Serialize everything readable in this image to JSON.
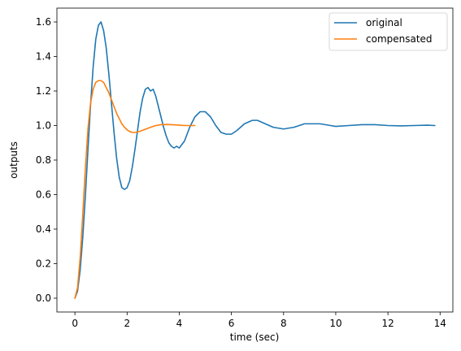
{
  "chart_data": {
    "type": "line",
    "title": "",
    "xlabel": "time (sec)",
    "ylabel": "outputs",
    "xlim": [
      -0.69,
      14.49
    ],
    "ylim": [
      -0.08,
      1.68
    ],
    "xticks": [
      0,
      2,
      4,
      6,
      8,
      10,
      12,
      14
    ],
    "xtick_labels": [
      "0",
      "2",
      "4",
      "6",
      "8",
      "10",
      "12",
      "14"
    ],
    "yticks": [
      0.0,
      0.2,
      0.4,
      0.6,
      0.8,
      1.0,
      1.2,
      1.4,
      1.6
    ],
    "ytick_labels": [
      "0.0",
      "0.2",
      "0.4",
      "0.6",
      "0.8",
      "1.0",
      "1.2",
      "1.4",
      "1.6"
    ],
    "grid": false,
    "legend_position": "top-right",
    "series": [
      {
        "name": "original",
        "color": "#1f77b4",
        "x": [
          0.0,
          0.1,
          0.2,
          0.3,
          0.4,
          0.5,
          0.6,
          0.7,
          0.8,
          0.9,
          1.0,
          1.1,
          1.2,
          1.3,
          1.4,
          1.5,
          1.6,
          1.7,
          1.8,
          1.9,
          2.0,
          2.1,
          2.2,
          2.3,
          2.4,
          2.5,
          2.6,
          2.7,
          2.8,
          2.9,
          3.0,
          3.1,
          3.2,
          3.3,
          3.4,
          3.5,
          3.6,
          3.7,
          3.8,
          3.9,
          4.0,
          4.2,
          4.4,
          4.6,
          4.8,
          5.0,
          5.2,
          5.4,
          5.6,
          5.8,
          6.0,
          6.2,
          6.5,
          6.8,
          7.0,
          7.3,
          7.6,
          8.0,
          8.4,
          8.8,
          9.0,
          9.4,
          9.8,
          10.0,
          10.5,
          11.0,
          11.5,
          12.0,
          12.5,
          13.0,
          13.5,
          13.8
        ],
        "y": [
          0.0,
          0.04,
          0.16,
          0.35,
          0.59,
          0.86,
          1.12,
          1.34,
          1.5,
          1.58,
          1.6,
          1.55,
          1.45,
          1.3,
          1.13,
          0.96,
          0.81,
          0.7,
          0.64,
          0.63,
          0.64,
          0.68,
          0.76,
          0.86,
          0.97,
          1.08,
          1.16,
          1.21,
          1.22,
          1.2,
          1.21,
          1.17,
          1.11,
          1.05,
          0.99,
          0.94,
          0.9,
          0.88,
          0.87,
          0.88,
          0.87,
          0.91,
          0.99,
          1.05,
          1.08,
          1.08,
          1.05,
          1.0,
          0.96,
          0.95,
          0.95,
          0.97,
          1.01,
          1.03,
          1.03,
          1.01,
          0.99,
          0.98,
          0.99,
          1.01,
          1.01,
          1.01,
          1.0,
          0.995,
          1.0,
          1.005,
          1.005,
          1.0,
          0.998,
          1.0,
          1.002,
          1.0
        ]
      },
      {
        "name": "compensated",
        "color": "#ff7f0e",
        "x": [
          0.0,
          0.1,
          0.2,
          0.3,
          0.4,
          0.5,
          0.6,
          0.7,
          0.8,
          0.9,
          1.0,
          1.1,
          1.2,
          1.3,
          1.4,
          1.5,
          1.6,
          1.7,
          1.8,
          1.9,
          2.0,
          2.1,
          2.2,
          2.3,
          2.4,
          2.5,
          2.7,
          2.9,
          3.1,
          3.3,
          3.5,
          3.7,
          3.9,
          4.1,
          4.3,
          4.6
        ],
        "y": [
          0.0,
          0.06,
          0.23,
          0.48,
          0.75,
          0.98,
          1.13,
          1.21,
          1.25,
          1.26,
          1.26,
          1.25,
          1.22,
          1.19,
          1.15,
          1.11,
          1.07,
          1.04,
          1.01,
          0.99,
          0.975,
          0.965,
          0.96,
          0.96,
          0.963,
          0.967,
          0.978,
          0.99,
          1.0,
          1.005,
          1.006,
          1.005,
          1.003,
          1.001,
          1.0,
          1.0
        ]
      }
    ]
  }
}
